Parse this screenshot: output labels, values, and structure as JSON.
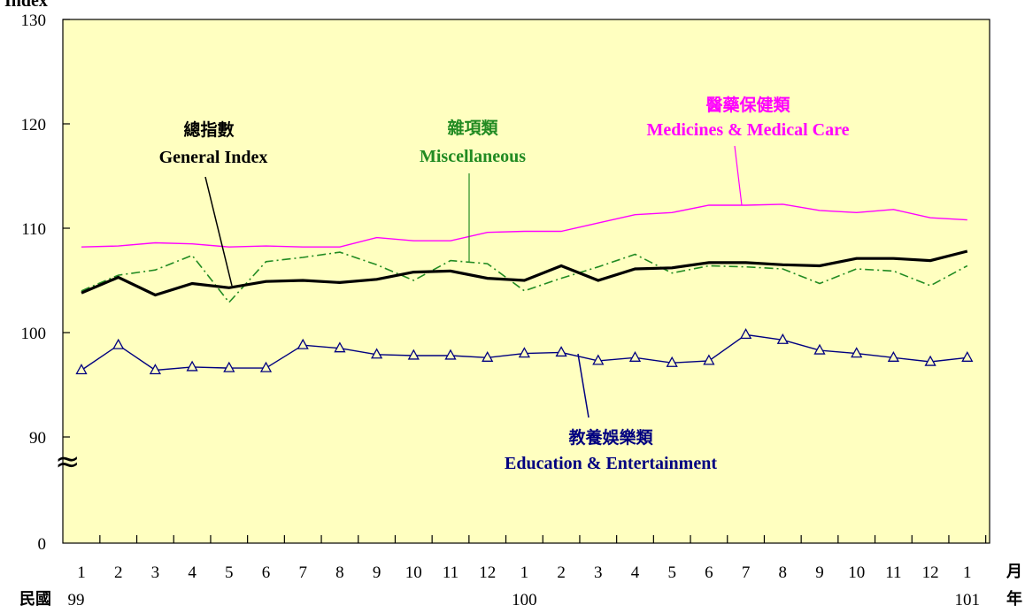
{
  "chart_data": {
    "type": "line",
    "ylabel": "Index",
    "y_ticks": [
      "130",
      "120",
      "110",
      "100",
      "90",
      "0"
    ],
    "axis_break_symbol": "≈",
    "x_month_labels": [
      "1",
      "2",
      "3",
      "4",
      "5",
      "6",
      "7",
      "8",
      "9",
      "10",
      "11",
      "12",
      "1",
      "2",
      "3",
      "4",
      "5",
      "6",
      "7",
      "8",
      "9",
      "10",
      "11",
      "12",
      "1"
    ],
    "x_unit_month": "月",
    "x_unit_year": "年",
    "x_era_label": "民國",
    "x_year_labels": [
      {
        "label": "99",
        "at_index": 0
      },
      {
        "label": "100",
        "at_index": 12
      },
      {
        "label": "101",
        "at_index": 24
      }
    ],
    "grid": false,
    "plot_background": "#FFFFC0",
    "series": [
      {
        "name": "醫藥保健類",
        "name_en": "Medicines & Medical Care",
        "color": "#FF00FF",
        "style": "solid",
        "values": [
          108.2,
          108.3,
          108.6,
          108.5,
          108.2,
          108.3,
          108.2,
          108.2,
          109.1,
          108.8,
          108.8,
          109.6,
          109.7,
          109.7,
          110.5,
          111.3,
          111.5,
          112.2,
          112.2,
          112.3,
          111.7,
          111.5,
          111.8,
          111.0,
          110.8
        ]
      },
      {
        "name": "雜項類",
        "name_en": "Miscellaneous",
        "color": "#228B22",
        "style": "dashdot",
        "values": [
          104.0,
          105.5,
          106.0,
          107.4,
          102.9,
          106.8,
          107.2,
          107.7,
          106.5,
          105.0,
          106.9,
          106.6,
          104.0,
          105.2,
          106.3,
          107.5,
          105.7,
          106.4,
          106.3,
          106.1,
          104.7,
          106.1,
          105.9,
          104.5,
          106.4
        ]
      },
      {
        "name": "總指數",
        "name_en": "General Index",
        "color": "#000000",
        "style": "solid-bold",
        "values": [
          103.8,
          105.3,
          103.6,
          104.7,
          104.3,
          104.9,
          105.0,
          104.8,
          105.1,
          105.8,
          105.9,
          105.2,
          105.0,
          106.4,
          105.0,
          106.1,
          106.2,
          106.7,
          106.7,
          106.5,
          106.4,
          107.1,
          107.1,
          106.9,
          107.8
        ]
      },
      {
        "name": "教養娛樂類",
        "name_en": "Education & Entertainment",
        "color": "#000080",
        "style": "solid-triangle",
        "values": [
          96.4,
          98.8,
          96.4,
          96.7,
          96.6,
          96.6,
          98.8,
          98.5,
          97.9,
          97.8,
          97.8,
          97.6,
          98.0,
          98.1,
          97.3,
          97.6,
          97.1,
          97.3,
          99.8,
          99.3,
          98.3,
          98.0,
          97.6,
          97.2,
          97.6
        ]
      }
    ],
    "annotations": [
      {
        "series": "總指數",
        "zh": "總指數",
        "en": "General Index",
        "color": "#000000"
      },
      {
        "series": "雜項類",
        "zh": "雜項類",
        "en": "Miscellaneous",
        "color": "#228B22"
      },
      {
        "series": "醫藥保健類",
        "zh": "醫藥保健類",
        "en": "Medicines & Medical Care",
        "color": "#FF00FF"
      },
      {
        "series": "教養娛樂類",
        "zh": "教養娛樂類",
        "en": "Education & Entertainment",
        "color": "#000080"
      }
    ]
  }
}
